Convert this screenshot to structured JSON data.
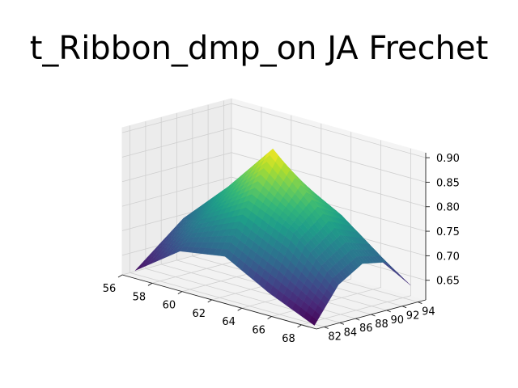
{
  "chart_data": {
    "type": "surface3d",
    "title": "t_Ribbon_dmp_on JA Frechet",
    "colormap": "viridis",
    "grid": true,
    "x_ticks": [
      56,
      58,
      60,
      62,
      64,
      66,
      68
    ],
    "y_ticks": [
      82,
      84,
      86,
      88,
      90,
      92,
      94
    ],
    "z_ticks": [
      "0.65",
      "0.70",
      "0.75",
      "0.80",
      "0.85",
      "0.90"
    ],
    "xlim": [
      56,
      69
    ],
    "ylim": [
      81,
      95
    ],
    "zlim": [
      0.61,
      0.91
    ],
    "x": [
      56.5,
      59.5,
      62.5,
      65.5,
      68.5
    ],
    "y": [
      81.7,
      84.8,
      87.8,
      90.9,
      94.0
    ],
    "z": [
      [
        0.62,
        0.66,
        0.7,
        0.68,
        0.64
      ],
      [
        0.685,
        0.745,
        0.79,
        0.76,
        0.7
      ],
      [
        0.7,
        0.8,
        0.893,
        0.82,
        0.72
      ],
      [
        0.65,
        0.76,
        0.8,
        0.77,
        0.69
      ],
      [
        0.61,
        0.68,
        0.71,
        0.7,
        0.64
      ]
    ]
  }
}
